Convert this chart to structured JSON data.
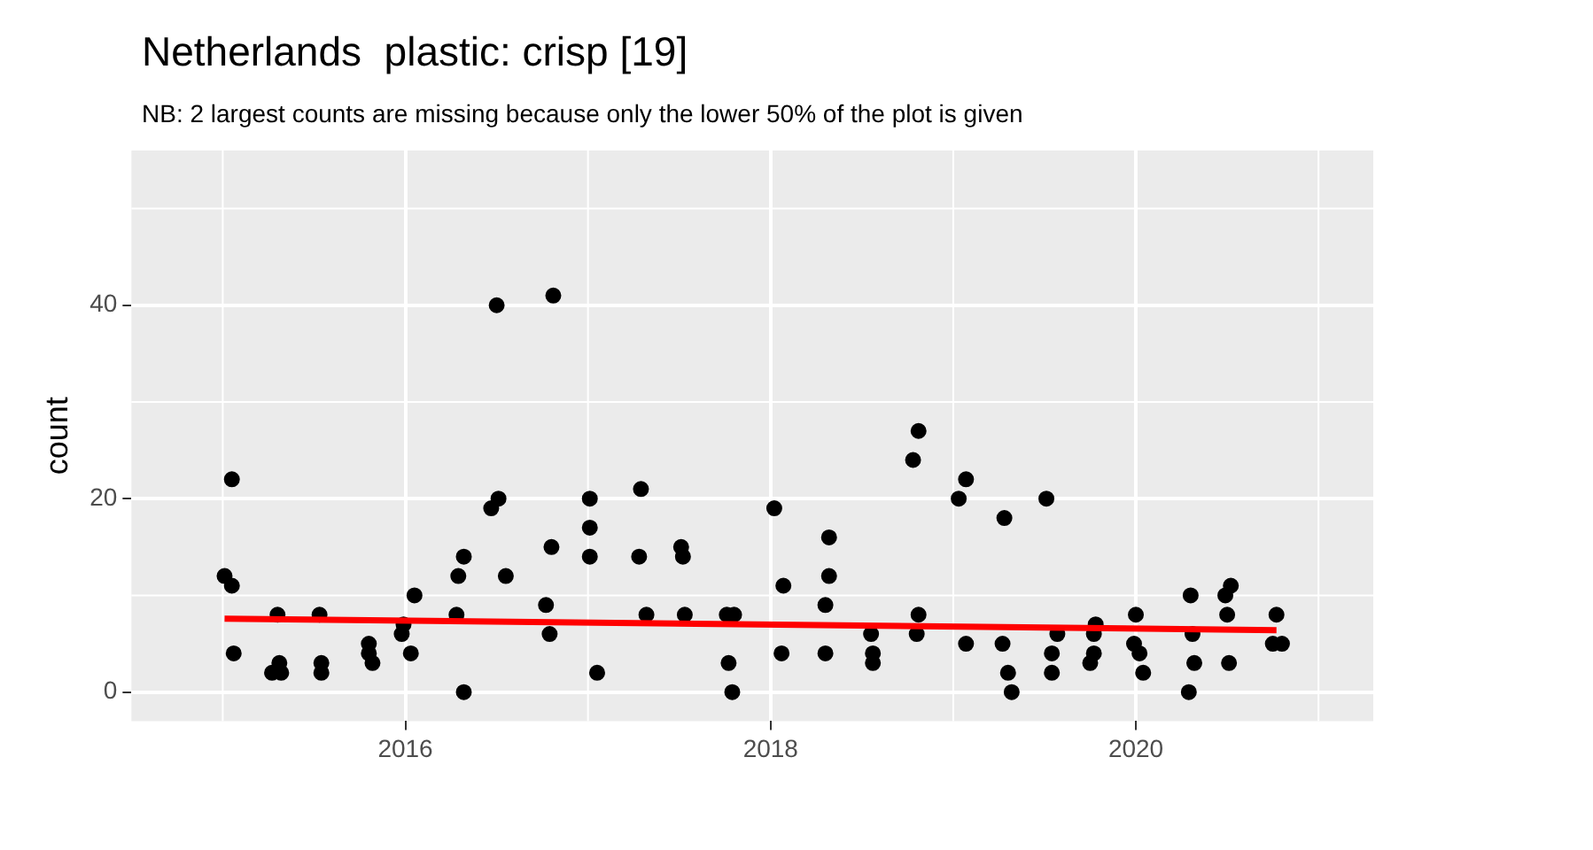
{
  "chart_data": {
    "type": "scatter",
    "title": "Netherlands  plastic: crisp [19]",
    "subtitle": "NB: 2 largest counts are missing because only the lower 50% of the plot is given",
    "ylabel": "count",
    "xlim": [
      2014.5,
      2021.3
    ],
    "xticks": [
      2016,
      2018,
      2020
    ],
    "ylim": [
      -3,
      56
    ],
    "yticks": [
      0,
      20,
      40
    ],
    "grid": true,
    "series": [
      {
        "marker": "circle",
        "color": "#000000",
        "x": [
          2015.01,
          2015.05,
          2015.05,
          2015.06,
          2015.27,
          2015.3,
          2015.31,
          2015.32,
          2015.53,
          2015.54,
          2015.54,
          2015.8,
          2015.8,
          2015.82,
          2015.98,
          2015.99,
          2016.03,
          2016.05,
          2016.28,
          2016.29,
          2016.32,
          2016.32,
          2016.47,
          2016.5,
          2016.51,
          2016.55,
          2016.77,
          2016.79,
          2016.8,
          2016.81,
          2017.01,
          2017.01,
          2017.01,
          2017.05,
          2017.28,
          2017.29,
          2017.32,
          2017.51,
          2017.52,
          2017.53,
          2017.76,
          2017.77,
          2017.79,
          2017.8,
          2018.02,
          2018.06,
          2018.07,
          2018.3,
          2018.3,
          2018.32,
          2018.32,
          2018.55,
          2018.56,
          2018.56,
          2018.78,
          2018.8,
          2018.81,
          2018.81,
          2019.03,
          2019.07,
          2019.07,
          2019.27,
          2019.28,
          2019.3,
          2019.32,
          2019.51,
          2019.54,
          2019.54,
          2019.57,
          2019.75,
          2019.77,
          2019.77,
          2019.78,
          2019.99,
          2020.0,
          2020.02,
          2020.04,
          2020.29,
          2020.3,
          2020.31,
          2020.32,
          2020.49,
          2020.5,
          2020.51,
          2020.52,
          2020.75,
          2020.77,
          2020.8
        ],
        "values": [
          12,
          22,
          11,
          4,
          2,
          8,
          3,
          2,
          8,
          3,
          2,
          5,
          4,
          3,
          6,
          7,
          4,
          10,
          8,
          12,
          14,
          0,
          19,
          40,
          20,
          12,
          9,
          6,
          15,
          41,
          20,
          17,
          14,
          2,
          14,
          21,
          8,
          15,
          14,
          8,
          8,
          3,
          0,
          8,
          19,
          4,
          11,
          4,
          9,
          16,
          12,
          6,
          4,
          3,
          24,
          6,
          27,
          8,
          20,
          22,
          5,
          5,
          18,
          2,
          0,
          20,
          4,
          2,
          6,
          3,
          6,
          4,
          7,
          5,
          8,
          4,
          2,
          0,
          10,
          6,
          3,
          10,
          8,
          3,
          11,
          5,
          8,
          5
        ]
      },
      {
        "type": "line",
        "color": "#ff0000",
        "x": [
          2015.01,
          2020.77
        ],
        "values": [
          7.6,
          6.4
        ]
      }
    ]
  }
}
